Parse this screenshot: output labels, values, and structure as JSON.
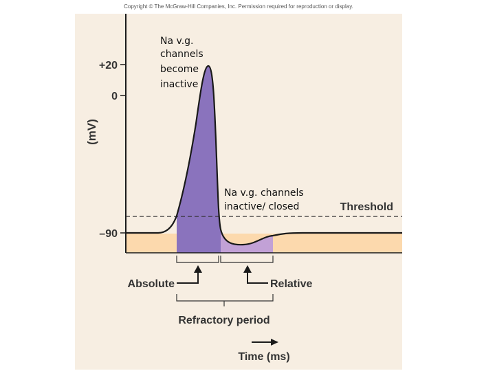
{
  "copyright": "Copyright © The McGraw-Hill Companies, Inc. Permission required for reproduction or display.",
  "axis": {
    "y_label": "(mV)",
    "ticks": [
      {
        "value": 20,
        "label": "+20"
      },
      {
        "value": 0,
        "label": "0"
      },
      {
        "value": -90,
        "label": "–90"
      }
    ],
    "x_label": "Time (ms)"
  },
  "threshold_label": "Threshold",
  "annotations": {
    "inactive_lines": [
      "Na v.g.",
      "channels",
      "become",
      "inactive"
    ],
    "closed_lines": [
      "Na v.g. channels",
      "inactive/ closed"
    ]
  },
  "periods": {
    "absolute": "Absolute",
    "relative": "Relative",
    "refractory": "Refractory period"
  },
  "colors": {
    "panel": "#f7eee2",
    "baseline_fill": "#fcd9ad",
    "absolute_fill": "#8a73bd",
    "relative_fill": "#c2a1d6",
    "trace": "#1a1a1a"
  }
}
